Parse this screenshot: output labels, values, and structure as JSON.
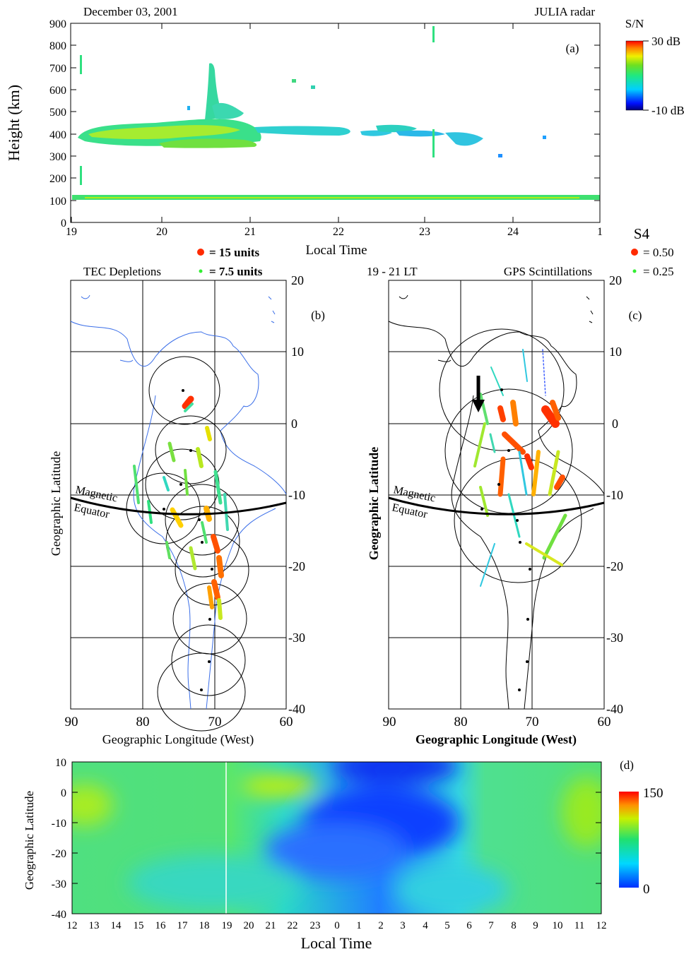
{
  "panel_a": {
    "date": "December 03, 2001",
    "instrument": "JULIA radar",
    "tag": "(a)",
    "ylabel": "Height (km)",
    "xlabel": "Local Time",
    "yticks": [
      "0",
      "100",
      "200",
      "300",
      "400",
      "500",
      "600",
      "700",
      "800",
      "900"
    ],
    "xticks": [
      "19",
      "20",
      "21",
      "22",
      "23",
      "24",
      "1"
    ],
    "colorbar": {
      "title": "S/N",
      "max": "30 dB",
      "min": "-10 dB"
    }
  },
  "panel_b": {
    "title": "TEC Depletions",
    "tag": "(b)",
    "legend": [
      {
        "label": "= 15 units",
        "color": "#ff2a00"
      },
      {
        "label": "= 7.5 units",
        "color": "#33ee33"
      }
    ],
    "ylabel": "Geographic Latitude",
    "xlabel": "Geographic Longitude (West)",
    "xticks": [
      "90",
      "80",
      "70",
      "60"
    ],
    "yticks": [
      "20",
      "10",
      "0",
      "-10",
      "-20",
      "-30",
      "-40"
    ],
    "equator_label_1": "Magnetic",
    "equator_label_2": "Equator"
  },
  "panel_c": {
    "time": "19 - 21 LT",
    "title": "GPS Scintillations",
    "tag": "(c)",
    "legend_title": "S4",
    "legend": [
      {
        "label": "= 0.50",
        "color": "#ff2a00"
      },
      {
        "label": "= 0.25",
        "color": "#33ee33"
      }
    ],
    "ylabel": "Geographic Latitude",
    "xlabel": "Geographic Longitude (West)",
    "xticks": [
      "90",
      "80",
      "70",
      "60"
    ],
    "yticks": [
      "20",
      "10",
      "0",
      "-10",
      "-20",
      "-30",
      "-40"
    ],
    "equator_label_1": "Magnetic",
    "equator_label_2": "Equator"
  },
  "panel_d": {
    "tag": "(d)",
    "ylabel": "Geographic Latitude",
    "xlabel": "Local Time",
    "yticks": [
      "10",
      "0",
      "-10",
      "-20",
      "-30",
      "-40"
    ],
    "xticks": [
      "12",
      "13",
      "14",
      "15",
      "16",
      "17",
      "18",
      "19",
      "20",
      "21",
      "22",
      "23",
      "0",
      "1",
      "2",
      "3",
      "4",
      "5",
      "6",
      "7",
      "8",
      "9",
      "10",
      "11",
      "12"
    ],
    "colorbar": {
      "max": "150",
      "min": "0"
    }
  },
  "chart_data": [
    {
      "type": "heatmap",
      "title": "December 03, 2001 — JULIA radar",
      "xlabel": "Local Time",
      "ylabel": "Height (km)",
      "xlim": [
        19,
        25
      ],
      "ylim": [
        0,
        900
      ],
      "colorbar": {
        "label": "S/N",
        "range_dB": [
          -10,
          30
        ]
      },
      "echo_features": [
        {
          "name": "E-region echo",
          "lt_start": 19.0,
          "lt_end": 25.0,
          "height_km": 105
        },
        {
          "name": "F-region plume layer",
          "lt_start": 19.0,
          "lt_end": 21.2,
          "height_km": [
            340,
            460
          ]
        },
        {
          "name": "Rising plume",
          "lt_start": 20.4,
          "lt_end": 20.8,
          "height_km": [
            450,
            730
          ]
        },
        {
          "name": "Fading F echoes",
          "lt_start": 21.2,
          "lt_end": 23.8,
          "height_km": [
            300,
            440
          ]
        }
      ]
    },
    {
      "type": "scatter",
      "title": "TEC Depletions",
      "xlabel": "Geographic Longitude (West)",
      "ylabel": "Geographic Latitude",
      "xlim": [
        90,
        60
      ],
      "ylim": [
        -40,
        20
      ],
      "stations": [
        [
          74.2,
          4.5
        ],
        [
          72.1,
          -6.6
        ],
        [
          73.7,
          -8.3
        ],
        [
          76.2,
          -11.8
        ],
        [
          71.4,
          -13.3
        ],
        [
          71.2,
          -16.5
        ],
        [
          70.0,
          -20.4
        ],
        [
          70.4,
          -27.4
        ],
        [
          70.6,
          -33.4
        ],
        [
          71.7,
          -37.4
        ]
      ]
    },
    {
      "type": "scatter",
      "title": "GPS Scintillations",
      "xlabel": "Geographic Longitude (West)",
      "ylabel": "Geographic Latitude",
      "xlim": [
        90,
        60
      ],
      "ylim": [
        -40,
        20
      ],
      "time": "19 - 21 LT"
    },
    {
      "type": "heatmap",
      "xlabel": "Local Time",
      "ylabel": "Geographic Latitude",
      "ylim": [
        -40,
        10
      ],
      "colorbar_range": [
        0,
        150
      ]
    }
  ]
}
